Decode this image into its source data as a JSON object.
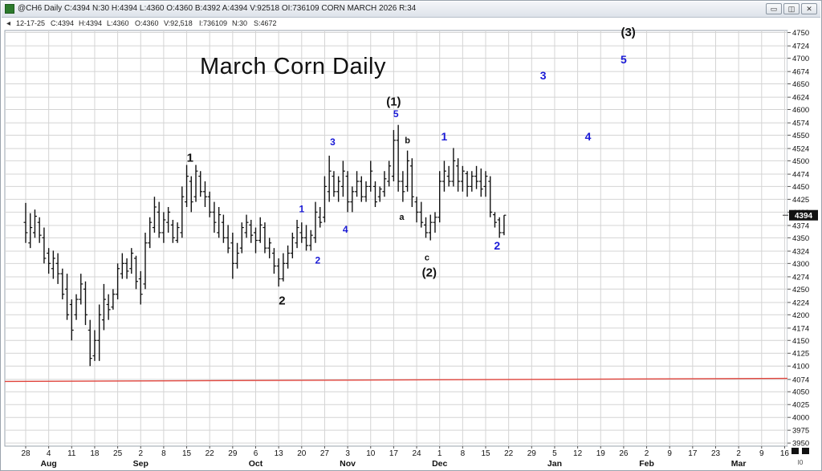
{
  "window": {
    "title": "@CH6 Daily C:4394 N:30 H:4394 L:4360 O:4360 B:4392 A:4394 V:92518 OI:736109 CORN MARCH 2026 R:34",
    "minimize_label": "▭",
    "restore_label": "◫",
    "close_label": "✕"
  },
  "info_bar": {
    "collapse_icon": "◂",
    "items": [
      "12-17-25",
      "C:4394",
      "H:4394",
      "L:4360",
      "O:4360",
      "V:92,518",
      "I:736109",
      "N:30",
      "S:4672"
    ]
  },
  "chart_data": {
    "type": "ohlc-bar",
    "title": "March Corn Daily",
    "y_axis": {
      "ticks": [
        3950,
        3975,
        4000,
        4025,
        4050,
        4074,
        4100,
        4125,
        4150,
        4174,
        4200,
        4224,
        4250,
        4274,
        4300,
        4324,
        4350,
        4374,
        4400,
        4425,
        4450,
        4474,
        4500,
        4524,
        4550,
        4574,
        4600,
        4624,
        4650,
        4674,
        4700,
        4724,
        4750
      ],
      "ylim": [
        3944,
        4754
      ],
      "last_price": "4394",
      "grid": true
    },
    "x_axis": {
      "day_ticks": [
        "28",
        "4",
        "11",
        "18",
        "25",
        "2",
        "8",
        "15",
        "22",
        "29",
        "6",
        "13",
        "20",
        "27",
        "3",
        "10",
        "17",
        "24",
        "1",
        "8",
        "15",
        "22",
        "29",
        "5",
        "12",
        "19",
        "26",
        "2",
        "9",
        "17",
        "23",
        "2",
        "9",
        "16"
      ],
      "month_labels": [
        {
          "label": "Aug",
          "tick_index": 1
        },
        {
          "label": "Sep",
          "tick_index": 5
        },
        {
          "label": "Oct",
          "tick_index": 10
        },
        {
          "label": "Nov",
          "tick_index": 14
        },
        {
          "label": "Dec",
          "tick_index": 18
        },
        {
          "label": "Jan",
          "tick_index": 23
        },
        {
          "label": "Feb",
          "tick_index": 27
        },
        {
          "label": "Mar",
          "tick_index": 31
        }
      ]
    },
    "reference_line": {
      "color": "#e0443c",
      "start_value": 4070,
      "end_value": 4076
    },
    "bars": [
      {
        "t": 0.0,
        "h": 4418,
        "l": 4340,
        "o": 4380,
        "c": 4360
      },
      {
        "t": 0.2,
        "h": 4398,
        "l": 4330,
        "o": 4340,
        "c": 4370
      },
      {
        "t": 0.4,
        "h": 4405,
        "l": 4350,
        "o": 4360,
        "c": 4392
      },
      {
        "t": 0.6,
        "h": 4390,
        "l": 4340,
        "o": 4380,
        "c": 4355
      },
      {
        "t": 0.8,
        "h": 4370,
        "l": 4300,
        "o": 4350,
        "c": 4310
      },
      {
        "t": 1.0,
        "h": 4330,
        "l": 4280,
        "o": 4320,
        "c": 4300
      },
      {
        "t": 1.2,
        "h": 4325,
        "l": 4270,
        "o": 4290,
        "c": 4310
      },
      {
        "t": 1.4,
        "h": 4320,
        "l": 4260,
        "o": 4300,
        "c": 4280
      },
      {
        "t": 1.6,
        "h": 4290,
        "l": 4230,
        "o": 4280,
        "c": 4240
      },
      {
        "t": 1.8,
        "h": 4280,
        "l": 4190,
        "o": 4250,
        "c": 4200
      },
      {
        "t": 2.0,
        "h": 4230,
        "l": 4150,
        "o": 4220,
        "c": 4170
      },
      {
        "t": 2.2,
        "h": 4240,
        "l": 4190,
        "o": 4200,
        "c": 4230
      },
      {
        "t": 2.4,
        "h": 4280,
        "l": 4220,
        "o": 4230,
        "c": 4260
      },
      {
        "t": 2.6,
        "h": 4265,
        "l": 4180,
        "o": 4250,
        "c": 4200
      },
      {
        "t": 2.8,
        "h": 4190,
        "l": 4100,
        "o": 4170,
        "c": 4115
      },
      {
        "t": 3.0,
        "h": 4170,
        "l": 4110,
        "o": 4120,
        "c": 4150
      },
      {
        "t": 3.2,
        "h": 4220,
        "l": 4110,
        "o": 4150,
        "c": 4200
      },
      {
        "t": 3.4,
        "h": 4260,
        "l": 4170,
        "o": 4190,
        "c": 4230
      },
      {
        "t": 3.6,
        "h": 4240,
        "l": 4190,
        "o": 4220,
        "c": 4210
      },
      {
        "t": 3.8,
        "h": 4250,
        "l": 4210,
        "o": 4215,
        "c": 4240
      },
      {
        "t": 4.0,
        "h": 4300,
        "l": 4230,
        "o": 4240,
        "c": 4290
      },
      {
        "t": 4.2,
        "h": 4320,
        "l": 4270,
        "o": 4280,
        "c": 4300
      },
      {
        "t": 4.4,
        "h": 4310,
        "l": 4270,
        "o": 4300,
        "c": 4285
      },
      {
        "t": 4.6,
        "h": 4330,
        "l": 4280,
        "o": 4290,
        "c": 4320
      },
      {
        "t": 4.8,
        "h": 4315,
        "l": 4250,
        "o": 4310,
        "c": 4265
      },
      {
        "t": 5.0,
        "h": 4285,
        "l": 4220,
        "o": 4270,
        "c": 4240
      },
      {
        "t": 5.2,
        "h": 4360,
        "l": 4250,
        "o": 4260,
        "c": 4340
      },
      {
        "t": 5.4,
        "h": 4390,
        "l": 4330,
        "o": 4340,
        "c": 4380
      },
      {
        "t": 5.6,
        "h": 4430,
        "l": 4360,
        "o": 4370,
        "c": 4410
      },
      {
        "t": 5.8,
        "h": 4420,
        "l": 4350,
        "o": 4400,
        "c": 4360
      },
      {
        "t": 6.0,
        "h": 4400,
        "l": 4340,
        "o": 4360,
        "c": 4385
      },
      {
        "t": 6.2,
        "h": 4410,
        "l": 4360,
        "o": 4380,
        "c": 4400
      },
      {
        "t": 6.4,
        "h": 4385,
        "l": 4340,
        "o": 4375,
        "c": 4350
      },
      {
        "t": 6.6,
        "h": 4380,
        "l": 4340,
        "o": 4345,
        "c": 4370
      },
      {
        "t": 6.8,
        "h": 4450,
        "l": 4350,
        "o": 4360,
        "c": 4430
      },
      {
        "t": 7.0,
        "h": 4492,
        "l": 4410,
        "o": 4420,
        "c": 4470
      },
      {
        "t": 7.2,
        "h": 4470,
        "l": 4400,
        "o": 4460,
        "c": 4420
      },
      {
        "t": 7.4,
        "h": 4492,
        "l": 4420,
        "o": 4430,
        "c": 4480
      },
      {
        "t": 7.6,
        "h": 4480,
        "l": 4430,
        "o": 4470,
        "c": 4440
      },
      {
        "t": 7.8,
        "h": 4460,
        "l": 4410,
        "o": 4440,
        "c": 4430
      },
      {
        "t": 8.0,
        "h": 4440,
        "l": 4390,
        "o": 4430,
        "c": 4400
      },
      {
        "t": 8.2,
        "h": 4420,
        "l": 4360,
        "o": 4400,
        "c": 4380
      },
      {
        "t": 8.4,
        "h": 4410,
        "l": 4350,
        "o": 4360,
        "c": 4395
      },
      {
        "t": 8.6,
        "h": 4395,
        "l": 4340,
        "o": 4380,
        "c": 4350
      },
      {
        "t": 8.8,
        "h": 4375,
        "l": 4320,
        "o": 4350,
        "c": 4330
      },
      {
        "t": 9.0,
        "h": 4360,
        "l": 4270,
        "o": 4340,
        "c": 4300
      },
      {
        "t": 9.2,
        "h": 4340,
        "l": 4290,
        "o": 4300,
        "c": 4320
      },
      {
        "t": 9.4,
        "h": 4380,
        "l": 4320,
        "o": 4330,
        "c": 4370
      },
      {
        "t": 9.6,
        "h": 4395,
        "l": 4350,
        "o": 4360,
        "c": 4380
      },
      {
        "t": 9.8,
        "h": 4385,
        "l": 4340,
        "o": 4375,
        "c": 4355
      },
      {
        "t": 10.0,
        "h": 4370,
        "l": 4320,
        "o": 4360,
        "c": 4345
      },
      {
        "t": 10.2,
        "h": 4390,
        "l": 4340,
        "o": 4345,
        "c": 4375
      },
      {
        "t": 10.4,
        "h": 4380,
        "l": 4320,
        "o": 4370,
        "c": 4330
      },
      {
        "t": 10.6,
        "h": 4350,
        "l": 4310,
        "o": 4330,
        "c": 4340
      },
      {
        "t": 10.8,
        "h": 4330,
        "l": 4280,
        "o": 4320,
        "c": 4295
      },
      {
        "t": 11.0,
        "h": 4310,
        "l": 4255,
        "o": 4295,
        "c": 4270
      },
      {
        "t": 11.2,
        "h": 4320,
        "l": 4265,
        "o": 4270,
        "c": 4300
      },
      {
        "t": 11.4,
        "h": 4335,
        "l": 4290,
        "o": 4300,
        "c": 4320
      },
      {
        "t": 11.6,
        "h": 4360,
        "l": 4310,
        "o": 4320,
        "c": 4350
      },
      {
        "t": 11.8,
        "h": 4385,
        "l": 4330,
        "o": 4340,
        "c": 4370
      },
      {
        "t": 12.0,
        "h": 4380,
        "l": 4340,
        "o": 4360,
        "c": 4350
      },
      {
        "t": 12.2,
        "h": 4375,
        "l": 4325,
        "o": 4350,
        "c": 4335
      },
      {
        "t": 12.4,
        "h": 4365,
        "l": 4325,
        "o": 4335,
        "c": 4355
      },
      {
        "t": 12.6,
        "h": 4420,
        "l": 4340,
        "o": 4350,
        "c": 4400
      },
      {
        "t": 12.8,
        "h": 4410,
        "l": 4370,
        "o": 4390,
        "c": 4380
      },
      {
        "t": 13.0,
        "h": 4470,
        "l": 4380,
        "o": 4390,
        "c": 4450
      },
      {
        "t": 13.2,
        "h": 4510,
        "l": 4420,
        "o": 4440,
        "c": 4480
      },
      {
        "t": 13.4,
        "h": 4480,
        "l": 4430,
        "o": 4470,
        "c": 4440
      },
      {
        "t": 13.6,
        "h": 4470,
        "l": 4420,
        "o": 4440,
        "c": 4460
      },
      {
        "t": 13.8,
        "h": 4500,
        "l": 4430,
        "o": 4450,
        "c": 4480
      },
      {
        "t": 14.0,
        "h": 4480,
        "l": 4400,
        "o": 4470,
        "c": 4420
      },
      {
        "t": 14.2,
        "h": 4450,
        "l": 4400,
        "o": 4420,
        "c": 4440
      },
      {
        "t": 14.4,
        "h": 4480,
        "l": 4430,
        "o": 4440,
        "c": 4460
      },
      {
        "t": 14.6,
        "h": 4470,
        "l": 4420,
        "o": 4460,
        "c": 4430
      },
      {
        "t": 14.8,
        "h": 4460,
        "l": 4420,
        "o": 4430,
        "c": 4450
      },
      {
        "t": 15.0,
        "h": 4500,
        "l": 4440,
        "o": 4450,
        "c": 4480
      },
      {
        "t": 15.2,
        "h": 4460,
        "l": 4410,
        "o": 4450,
        "c": 4420
      },
      {
        "t": 15.4,
        "h": 4450,
        "l": 4420,
        "o": 4430,
        "c": 4445
      },
      {
        "t": 15.6,
        "h": 4480,
        "l": 4430,
        "o": 4440,
        "c": 4465
      },
      {
        "t": 15.8,
        "h": 4500,
        "l": 4450,
        "o": 4460,
        "c": 4490
      },
      {
        "t": 16.0,
        "h": 4560,
        "l": 4460,
        "o": 4470,
        "c": 4540
      },
      {
        "t": 16.2,
        "h": 4570,
        "l": 4440,
        "o": 4540,
        "c": 4460
      },
      {
        "t": 16.4,
        "h": 4480,
        "l": 4420,
        "o": 4460,
        "c": 4440
      },
      {
        "t": 16.6,
        "h": 4520,
        "l": 4440,
        "o": 4450,
        "c": 4500
      },
      {
        "t": 16.8,
        "h": 4505,
        "l": 4410,
        "o": 4490,
        "c": 4430
      },
      {
        "t": 17.0,
        "h": 4430,
        "l": 4380,
        "o": 4420,
        "c": 4400
      },
      {
        "t": 17.2,
        "h": 4420,
        "l": 4370,
        "o": 4400,
        "c": 4380
      },
      {
        "t": 17.4,
        "h": 4390,
        "l": 4350,
        "o": 4375,
        "c": 4360
      },
      {
        "t": 17.6,
        "h": 4395,
        "l": 4345,
        "o": 4360,
        "c": 4380
      },
      {
        "t": 17.8,
        "h": 4400,
        "l": 4360,
        "o": 4380,
        "c": 4390
      },
      {
        "t": 18.0,
        "h": 4480,
        "l": 4380,
        "o": 4390,
        "c": 4460
      },
      {
        "t": 18.2,
        "h": 4500,
        "l": 4440,
        "o": 4460,
        "c": 4480
      },
      {
        "t": 18.4,
        "h": 4490,
        "l": 4450,
        "o": 4470,
        "c": 4460
      },
      {
        "t": 18.6,
        "h": 4525,
        "l": 4450,
        "o": 4460,
        "c": 4500
      },
      {
        "t": 18.8,
        "h": 4505,
        "l": 4440,
        "o": 4490,
        "c": 4460
      },
      {
        "t": 19.0,
        "h": 4490,
        "l": 4440,
        "o": 4460,
        "c": 4480
      },
      {
        "t": 19.2,
        "h": 4480,
        "l": 4430,
        "o": 4475,
        "c": 4450
      },
      {
        "t": 19.4,
        "h": 4480,
        "l": 4440,
        "o": 4450,
        "c": 4470
      },
      {
        "t": 19.6,
        "h": 4490,
        "l": 4445,
        "o": 4470,
        "c": 4460
      },
      {
        "t": 19.8,
        "h": 4485,
        "l": 4430,
        "o": 4460,
        "c": 4445
      },
      {
        "t": 20.0,
        "h": 4480,
        "l": 4430,
        "o": 4450,
        "c": 4470
      },
      {
        "t": 20.2,
        "h": 4470,
        "l": 4390,
        "o": 4460,
        "c": 4400
      },
      {
        "t": 20.4,
        "h": 4400,
        "l": 4370,
        "o": 4395,
        "c": 4380
      },
      {
        "t": 20.6,
        "h": 4390,
        "l": 4350,
        "o": 4385,
        "c": 4360
      },
      {
        "t": 20.8,
        "h": 4394,
        "l": 4355,
        "o": 4360,
        "c": 4394
      }
    ],
    "annotations": [
      {
        "text": "1",
        "t": 7.15,
        "v": 4498,
        "color": "#111111",
        "size": 15
      },
      {
        "text": "2",
        "t": 11.15,
        "v": 4220,
        "color": "#111111",
        "size": 15
      },
      {
        "text": "1",
        "t": 12.0,
        "v": 4400,
        "color": "#1a1ad6",
        "size": 12
      },
      {
        "text": "2",
        "t": 12.7,
        "v": 4300,
        "color": "#1a1ad6",
        "size": 12
      },
      {
        "text": "3",
        "t": 13.35,
        "v": 4530,
        "color": "#1a1ad6",
        "size": 12
      },
      {
        "text": "4",
        "t": 13.9,
        "v": 4360,
        "color": "#1a1ad6",
        "size": 12
      },
      {
        "text": "5",
        "t": 16.1,
        "v": 4585,
        "color": "#1a1ad6",
        "size": 12
      },
      {
        "text": "(1)",
        "t": 16.0,
        "v": 4608,
        "color": "#111111",
        "size": 15
      },
      {
        "text": "b",
        "t": 16.6,
        "v": 4534,
        "color": "#111111",
        "size": 11
      },
      {
        "text": "a",
        "t": 16.35,
        "v": 4385,
        "color": "#111111",
        "size": 11
      },
      {
        "text": "c",
        "t": 17.45,
        "v": 4306,
        "color": "#111111",
        "size": 11
      },
      {
        "text": "(2)",
        "t": 17.55,
        "v": 4275,
        "color": "#111111",
        "size": 15
      },
      {
        "text": "1",
        "t": 18.2,
        "v": 4540,
        "color": "#1a1ad6",
        "size": 14
      },
      {
        "text": "2",
        "t": 20.5,
        "v": 4327,
        "color": "#1a1ad6",
        "size": 14
      },
      {
        "text": "3",
        "t": 22.5,
        "v": 4659,
        "color": "#1a1ad6",
        "size": 14
      },
      {
        "text": "4",
        "t": 24.45,
        "v": 4540,
        "color": "#1a1ad6",
        "size": 14
      },
      {
        "text": "(3)",
        "t": 26.2,
        "v": 4743,
        "color": "#111111",
        "size": 15
      },
      {
        "text": "5",
        "t": 26.0,
        "v": 4690,
        "color": "#1a1ad6",
        "size": 14
      }
    ],
    "bottom_right_label": "I0"
  }
}
